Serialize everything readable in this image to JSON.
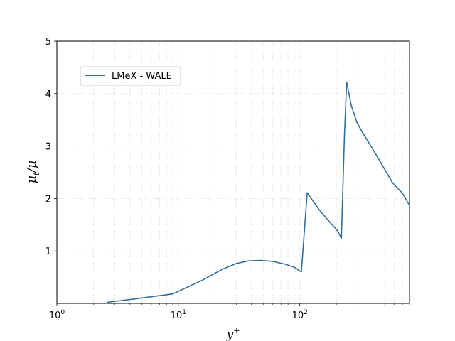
{
  "chart_data": {
    "type": "line",
    "xscale": "log",
    "xlim": [
      1,
      800
    ],
    "ylim": [
      0,
      5
    ],
    "xlabel": "y",
    "xlabel_sup": "+",
    "ylabel": "μ",
    "ylabel_sub": "t",
    "ylabel_tail": "/μ",
    "grid": true,
    "legend_position": "upper-left",
    "x_ticks": [
      {
        "value": 1,
        "base": "10",
        "exp": "0"
      },
      {
        "value": 10,
        "base": "10",
        "exp": "1"
      },
      {
        "value": 100,
        "base": "10",
        "exp": "2"
      }
    ],
    "y_ticks": [
      {
        "value": 1,
        "label": "1"
      },
      {
        "value": 2,
        "label": "2"
      },
      {
        "value": 3,
        "label": "3"
      },
      {
        "value": 4,
        "label": "4"
      },
      {
        "value": 5,
        "label": "5"
      }
    ],
    "series": [
      {
        "name": "LMeX - WALE",
        "color": "#2f6f9f",
        "points": [
          [
            2.6,
            0.02
          ],
          [
            4.5,
            0.09
          ],
          [
            9,
            0.18
          ],
          [
            16,
            0.45
          ],
          [
            23,
            0.65
          ],
          [
            30,
            0.76
          ],
          [
            38,
            0.81
          ],
          [
            48,
            0.82
          ],
          [
            60,
            0.8
          ],
          [
            75,
            0.75
          ],
          [
            90,
            0.69
          ],
          [
            103,
            0.6
          ],
          [
            115,
            2.11
          ],
          [
            145,
            1.78
          ],
          [
            175,
            1.56
          ],
          [
            205,
            1.38
          ],
          [
            220,
            1.24
          ],
          [
            233,
            3.2
          ],
          [
            243,
            4.22
          ],
          [
            265,
            3.78
          ],
          [
            295,
            3.45
          ],
          [
            330,
            3.25
          ],
          [
            390,
            2.98
          ],
          [
            460,
            2.7
          ],
          [
            580,
            2.3
          ],
          [
            700,
            2.1
          ],
          [
            800,
            1.87
          ]
        ]
      }
    ]
  }
}
